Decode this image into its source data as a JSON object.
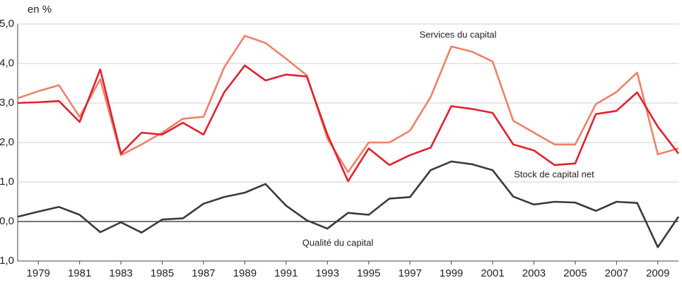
{
  "chart_data": {
    "type": "line",
    "y_label": "en %",
    "x": [
      1978,
      1979,
      1980,
      1981,
      1982,
      1983,
      1984,
      1985,
      1986,
      1987,
      1988,
      1989,
      1990,
      1991,
      1992,
      1993,
      1994,
      1995,
      1996,
      1997,
      1998,
      1999,
      2000,
      2001,
      2002,
      2003,
      2004,
      2005,
      2006,
      2007,
      2008,
      2009,
      2010
    ],
    "series": [
      {
        "name": "Services du capital",
        "color": "#f08068",
        "values": [
          3.12,
          3.3,
          3.45,
          2.65,
          3.6,
          1.68,
          1.95,
          2.25,
          2.6,
          2.65,
          3.9,
          4.7,
          4.52,
          4.12,
          3.7,
          2.1,
          1.25,
          2.0,
          2.0,
          2.3,
          3.15,
          4.43,
          4.3,
          4.05,
          2.55,
          2.25,
          1.95,
          1.95,
          2.97,
          3.28,
          3.77,
          1.7,
          1.85
        ]
      },
      {
        "name": "Stock de capital net",
        "color": "#e3202e",
        "values": [
          3.0,
          3.02,
          3.05,
          2.52,
          3.85,
          1.72,
          2.25,
          2.2,
          2.5,
          2.2,
          3.27,
          3.95,
          3.57,
          3.72,
          3.67,
          2.2,
          1.02,
          1.85,
          1.43,
          1.68,
          1.87,
          2.92,
          2.85,
          2.75,
          1.95,
          1.8,
          1.43,
          1.47,
          2.72,
          2.8,
          3.27,
          2.4,
          1.72
        ]
      },
      {
        "name": "Qualité du capital",
        "color": "#3a3a3a",
        "values": [
          0.12,
          0.25,
          0.37,
          0.17,
          -0.27,
          -0.02,
          -0.28,
          0.05,
          0.08,
          0.45,
          0.62,
          0.73,
          0.95,
          0.4,
          0.03,
          -0.18,
          0.22,
          0.17,
          0.58,
          0.62,
          1.3,
          1.52,
          1.45,
          1.3,
          0.63,
          0.43,
          0.5,
          0.48,
          0.27,
          0.5,
          0.47,
          -0.65,
          0.12
        ]
      }
    ],
    "xlim": [
      1978,
      2010
    ],
    "xticks": [
      1979,
      1981,
      1983,
      1985,
      1987,
      1989,
      1991,
      1993,
      1995,
      1997,
      1999,
      2001,
      2003,
      2005,
      2007,
      2009
    ],
    "ylim": [
      -1,
      5
    ],
    "yticks": [
      {
        "value": -1,
        "label": "–1,0"
      },
      {
        "value": 0,
        "label": "0,0"
      },
      {
        "value": 1,
        "label": "1,0"
      },
      {
        "value": 2,
        "label": "2,0"
      },
      {
        "value": 3,
        "label": "3,0"
      },
      {
        "value": 4,
        "label": "4,0"
      },
      {
        "value": 5,
        "label": "5,0"
      }
    ],
    "grid": true
  }
}
